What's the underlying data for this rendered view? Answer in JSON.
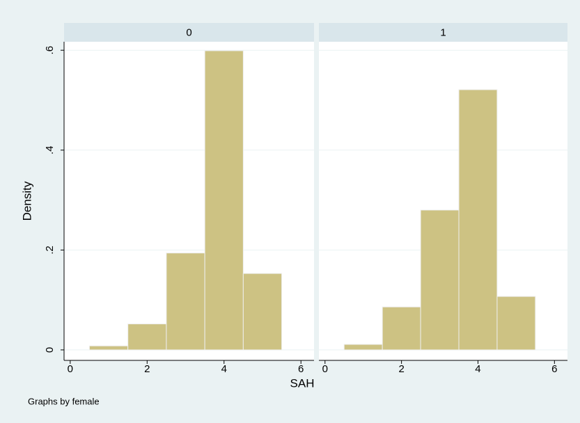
{
  "chart_data": [
    {
      "type": "histogram",
      "title": "0",
      "bins": [
        0.5,
        1.5,
        2.5,
        3.5,
        4.5,
        5.5
      ],
      "values": [
        0.008,
        0.052,
        0.194,
        0.599,
        0.153
      ],
      "color": "#cdc283",
      "xlim": [
        -0.16,
        6.34
      ],
      "xticks": [
        0,
        2,
        4,
        6
      ],
      "ylim": [
        -0.021,
        0.617
      ],
      "yticks": [
        {
          "value": 0,
          "label": "0"
        },
        {
          "value": 0.2,
          "label": ".2"
        },
        {
          "value": 0.4,
          "label": ".4"
        },
        {
          "value": 0.6,
          "label": ".6"
        }
      ],
      "grid": true
    },
    {
      "type": "histogram",
      "title": "1",
      "bins": [
        0.5,
        1.5,
        2.5,
        3.5,
        4.5,
        5.5
      ],
      "values": [
        0.011,
        0.086,
        0.28,
        0.521,
        0.107
      ],
      "color": "#cdc283",
      "xlim": [
        -0.16,
        6.34
      ],
      "xticks": [
        0,
        2,
        4,
        6
      ],
      "ylim": [
        -0.021,
        0.617
      ],
      "grid": true
    }
  ],
  "ylabel": "Density",
  "xlabel": "SAH",
  "note": "Graphs by female"
}
